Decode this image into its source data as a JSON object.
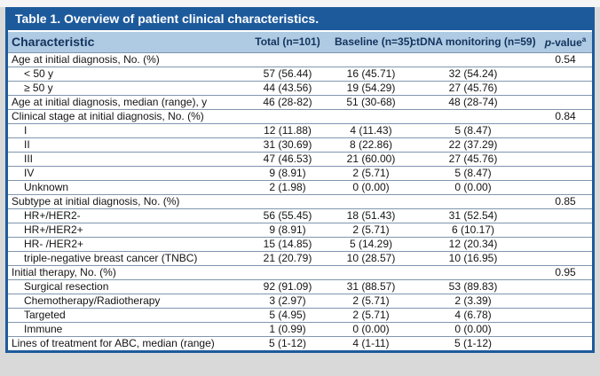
{
  "table": {
    "title": "Table 1. Overview of patient clinical characteristics.",
    "footnote_marker": "a",
    "colors": {
      "title_bar_bg": "#1d5a9c",
      "header_bg": "#aecbe3",
      "header_text": "#13335e",
      "row_line": "#8096ae",
      "page_bg": "#d9d9d9"
    },
    "header": {
      "characteristic": "Characteristic",
      "total": "Total (n=101)",
      "baseline": "Baseline (n=35)",
      "ctdna": "ctDNA monitoring (n=59)",
      "p_italic": "p",
      "p_rest": "-value",
      "p_sup": "a"
    },
    "rows": [
      {
        "label": "Age at initial diagnosis, No. (%)",
        "indent": false,
        "total": "",
        "baseline": "",
        "ctdna": "",
        "p": "0.54"
      },
      {
        "label": "< 50 y",
        "indent": true,
        "total": "57 (56.44)",
        "baseline": "16 (45.71)",
        "ctdna": "32 (54.24)",
        "p": ""
      },
      {
        "label": "≥ 50 y",
        "indent": true,
        "total": "44 (43.56)",
        "baseline": "19 (54.29)",
        "ctdna": "27 (45.76)",
        "p": ""
      },
      {
        "label": "Age at initial diagnosis, median (range), y",
        "indent": false,
        "total": "46 (28-82)",
        "baseline": "51 (30-68)",
        "ctdna": "48 (28-74)",
        "p": ""
      },
      {
        "label": "Clinical stage at initial diagnosis, No. (%)",
        "indent": false,
        "total": "",
        "baseline": "",
        "ctdna": "",
        "p": "0.84"
      },
      {
        "label": "I",
        "indent": true,
        "total": "12 (11.88)",
        "baseline": "4 (11.43)",
        "ctdna": "5 (8.47)",
        "p": ""
      },
      {
        "label": "II",
        "indent": true,
        "total": "31 (30.69)",
        "baseline": "8 (22.86)",
        "ctdna": "22 (37.29)",
        "p": ""
      },
      {
        "label": "III",
        "indent": true,
        "total": "47 (46.53)",
        "baseline": "21 (60.00)",
        "ctdna": "27 (45.76)",
        "p": ""
      },
      {
        "label": "IV",
        "indent": true,
        "total": "9 (8.91)",
        "baseline": "2 (5.71)",
        "ctdna": "5 (8.47)",
        "p": ""
      },
      {
        "label": "Unknown",
        "indent": true,
        "total": "2 (1.98)",
        "baseline": "0 (0.00)",
        "ctdna": "0 (0.00)",
        "p": ""
      },
      {
        "label": "Subtype at initial diagnosis, No. (%)",
        "indent": false,
        "total": "",
        "baseline": "",
        "ctdna": "",
        "p": "0.85"
      },
      {
        "label": "HR+/HER2-",
        "indent": true,
        "total": "56 (55.45)",
        "baseline": "18 (51.43)",
        "ctdna": "31 (52.54)",
        "p": ""
      },
      {
        "label": "HR+/HER2+",
        "indent": true,
        "total": "9 (8.91)",
        "baseline": "2 (5.71)",
        "ctdna": "6 (10.17)",
        "p": ""
      },
      {
        "label": "HR- /HER2+",
        "indent": true,
        "total": "15 (14.85)",
        "baseline": "5 (14.29)",
        "ctdna": "12 (20.34)",
        "p": ""
      },
      {
        "label": "triple-negative breast cancer (TNBC)",
        "indent": true,
        "total": "21 (20.79)",
        "baseline": "10 (28.57)",
        "ctdna": "10 (16.95)",
        "p": ""
      },
      {
        "label": "Initial therapy, No. (%)",
        "indent": false,
        "total": "",
        "baseline": "",
        "ctdna": "",
        "p": "0.95"
      },
      {
        "label": "Surgical resection",
        "indent": true,
        "total": "92 (91.09)",
        "baseline": "31 (88.57)",
        "ctdna": "53 (89.83)",
        "p": ""
      },
      {
        "label": "Chemotherapy/Radiotherapy",
        "indent": true,
        "total": "3 (2.97)",
        "baseline": "2 (5.71)",
        "ctdna": "2 (3.39)",
        "p": ""
      },
      {
        "label": "Targeted",
        "indent": true,
        "total": "5 (4.95)",
        "baseline": "2 (5.71)",
        "ctdna": "4 (6.78)",
        "p": ""
      },
      {
        "label": "Immune",
        "indent": true,
        "total": "1 (0.99)",
        "baseline": "0 (0.00)",
        "ctdna": "0 (0.00)",
        "p": ""
      },
      {
        "label": "Lines of treatment for ABC, median (range)",
        "indent": false,
        "total": "5 (1-12)",
        "baseline": "4 (1-11)",
        "ctdna": "5 (1-12)",
        "p": ""
      }
    ]
  }
}
